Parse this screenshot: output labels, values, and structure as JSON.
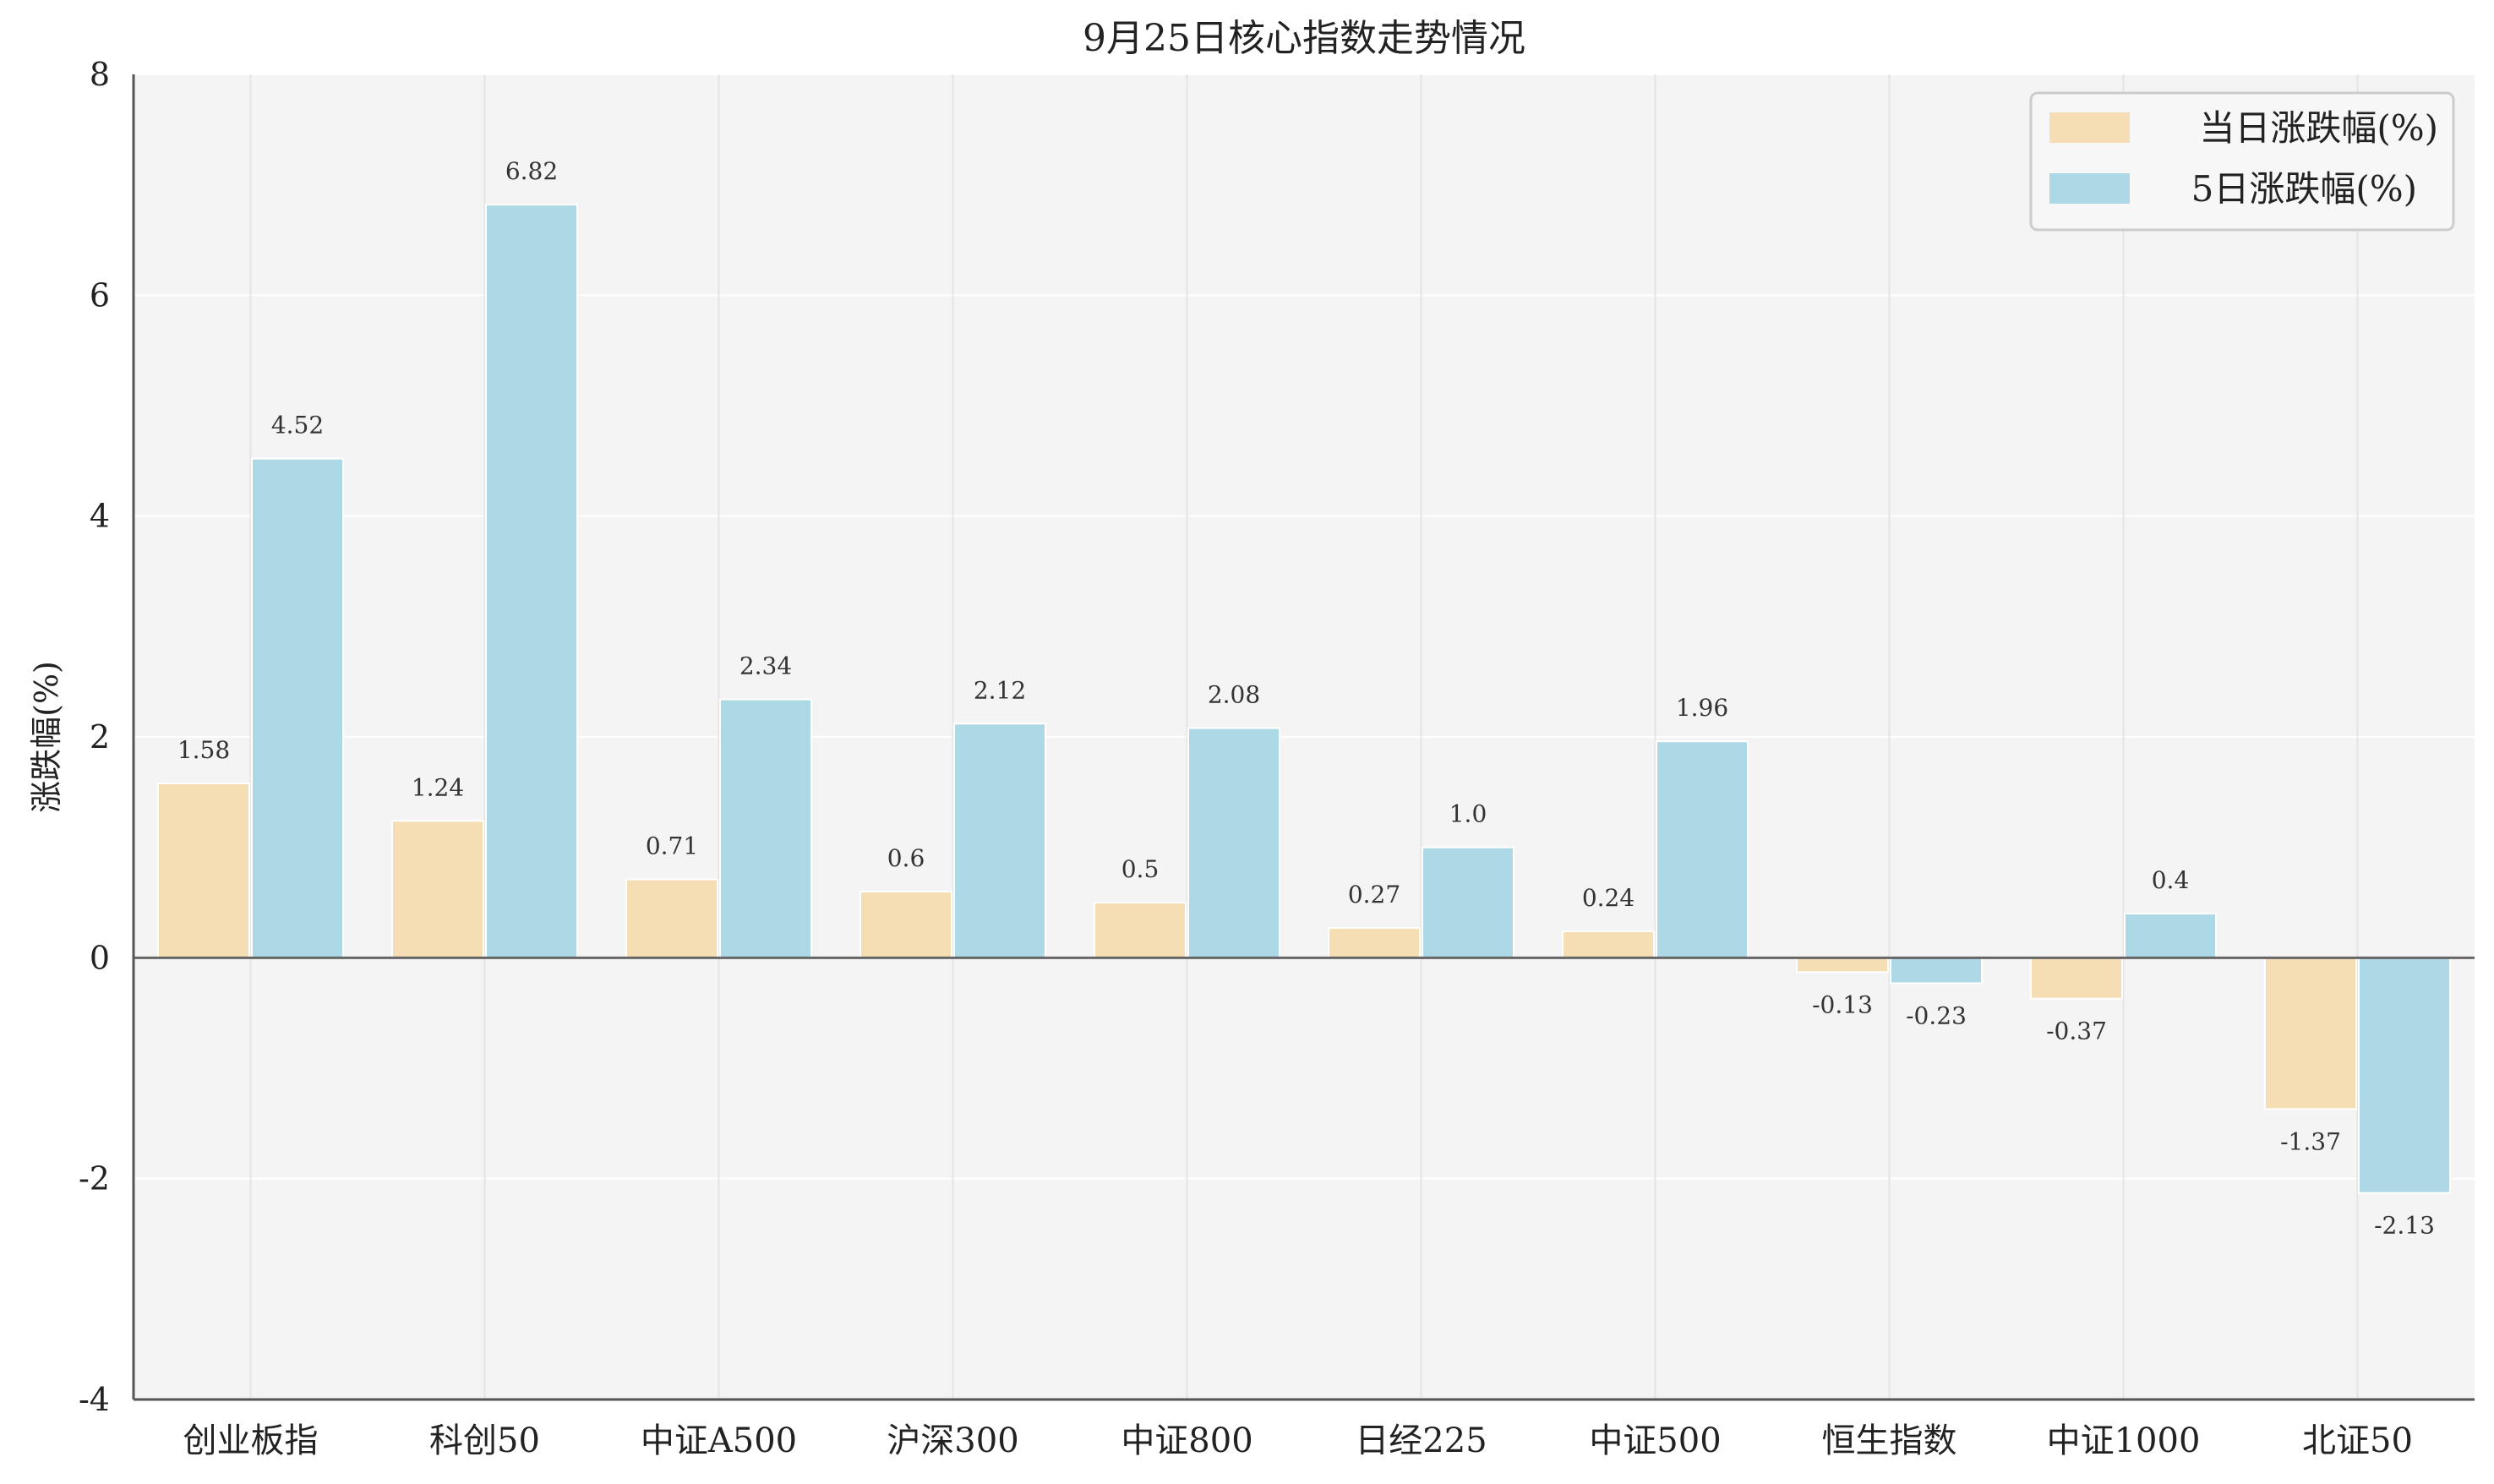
{
  "chart_data": {
    "type": "bar",
    "title": "9月25日核心指数走势情况",
    "xlabel": "",
    "ylabel": "涨跌幅(%)",
    "ylim": [
      -4,
      8
    ],
    "yticks": [
      -4,
      -2,
      0,
      2,
      4,
      6,
      8
    ],
    "grid": true,
    "legend_position": "top-right",
    "categories": [
      "创业板指",
      "科创50",
      "中证A500",
      "沪深300",
      "中证800",
      "日经225",
      "中证500",
      "恒生指数",
      "中证1000",
      "北证50"
    ],
    "series": [
      {
        "name": "当日涨跌幅(%)",
        "color": "#f5deb3",
        "values": [
          1.58,
          1.24,
          0.71,
          0.6,
          0.5,
          0.27,
          0.24,
          -0.13,
          -0.37,
          -1.37
        ],
        "labels": [
          "1.58",
          "1.24",
          "0.71",
          "0.6",
          "0.5",
          "0.27",
          "0.24",
          "-0.13",
          "-0.37",
          "-1.37"
        ]
      },
      {
        "name": "5日涨跌幅(%)",
        "color": "#add8e6",
        "values": [
          4.52,
          6.82,
          2.34,
          2.12,
          2.08,
          1.0,
          1.96,
          -0.23,
          0.4,
          -2.13
        ],
        "labels": [
          "4.52",
          "6.82",
          "2.34",
          "2.12",
          "2.08",
          "1.0",
          "1.96",
          "-0.23",
          "0.4",
          "-2.13"
        ]
      }
    ]
  }
}
